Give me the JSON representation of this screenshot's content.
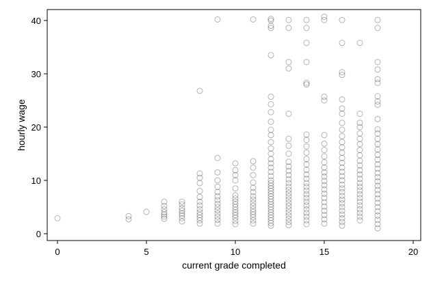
{
  "chart_data": {
    "type": "scatter",
    "xlabel": "current grade completed",
    "ylabel": "hourly wage",
    "xlim": [
      0,
      20
    ],
    "ylim": [
      0,
      40
    ],
    "xticks": [
      0,
      5,
      10,
      15,
      20
    ],
    "yticks": [
      0,
      10,
      20,
      30,
      40
    ],
    "grid": false,
    "marker_color": "#000000",
    "marker_opacity": 0.3,
    "points": [
      {
        "x": 0,
        "y": 2.9
      },
      {
        "x": 4,
        "y": 2.7
      },
      {
        "x": 4,
        "y": 3.3
      },
      {
        "x": 5,
        "y": 4.1
      },
      {
        "x": 6,
        "y": 2.8
      },
      {
        "x": 6,
        "y": 3.2
      },
      {
        "x": 6,
        "y": 3.6
      },
      {
        "x": 6,
        "y": 4.0
      },
      {
        "x": 6,
        "y": 4.6
      },
      {
        "x": 6,
        "y": 5.2
      },
      {
        "x": 6,
        "y": 6.0
      },
      {
        "x": 7,
        "y": 2.3
      },
      {
        "x": 7,
        "y": 2.9
      },
      {
        "x": 7,
        "y": 3.4
      },
      {
        "x": 7,
        "y": 3.8
      },
      {
        "x": 7,
        "y": 4.3
      },
      {
        "x": 7,
        "y": 4.8
      },
      {
        "x": 7,
        "y": 5.5
      },
      {
        "x": 7,
        "y": 6.0
      },
      {
        "x": 8,
        "y": 1.9
      },
      {
        "x": 8,
        "y": 2.5
      },
      {
        "x": 8,
        "y": 3.0
      },
      {
        "x": 8,
        "y": 3.5
      },
      {
        "x": 8,
        "y": 4.0
      },
      {
        "x": 8,
        "y": 4.6
      },
      {
        "x": 8,
        "y": 5.3
      },
      {
        "x": 8,
        "y": 6.0
      },
      {
        "x": 8,
        "y": 6.9
      },
      {
        "x": 8,
        "y": 8.0
      },
      {
        "x": 8,
        "y": 9.5
      },
      {
        "x": 8,
        "y": 10.5
      },
      {
        "x": 8,
        "y": 11.3
      },
      {
        "x": 8,
        "y": 26.8
      },
      {
        "x": 9,
        "y": 1.9
      },
      {
        "x": 9,
        "y": 2.6
      },
      {
        "x": 9,
        "y": 3.2
      },
      {
        "x": 9,
        "y": 3.8
      },
      {
        "x": 9,
        "y": 4.4
      },
      {
        "x": 9,
        "y": 5.0
      },
      {
        "x": 9,
        "y": 5.6
      },
      {
        "x": 9,
        "y": 6.3
      },
      {
        "x": 9,
        "y": 7.0
      },
      {
        "x": 9,
        "y": 7.8
      },
      {
        "x": 9,
        "y": 8.8
      },
      {
        "x": 9,
        "y": 10.0
      },
      {
        "x": 9,
        "y": 11.5
      },
      {
        "x": 9,
        "y": 14.2
      },
      {
        "x": 9,
        "y": 40.2
      },
      {
        "x": 10,
        "y": 1.8
      },
      {
        "x": 10,
        "y": 2.4
      },
      {
        "x": 10,
        "y": 3.0
      },
      {
        "x": 10,
        "y": 3.5
      },
      {
        "x": 10,
        "y": 4.0
      },
      {
        "x": 10,
        "y": 4.5
      },
      {
        "x": 10,
        "y": 5.0
      },
      {
        "x": 10,
        "y": 5.5
      },
      {
        "x": 10,
        "y": 6.0
      },
      {
        "x": 10,
        "y": 6.6
      },
      {
        "x": 10,
        "y": 7.2
      },
      {
        "x": 10,
        "y": 8.5
      },
      {
        "x": 10,
        "y": 10.0
      },
      {
        "x": 10,
        "y": 11.0
      },
      {
        "x": 10,
        "y": 11.9
      },
      {
        "x": 10,
        "y": 13.2
      },
      {
        "x": 11,
        "y": 1.9
      },
      {
        "x": 11,
        "y": 2.5
      },
      {
        "x": 11,
        "y": 3.1
      },
      {
        "x": 11,
        "y": 3.6
      },
      {
        "x": 11,
        "y": 4.1
      },
      {
        "x": 11,
        "y": 4.6
      },
      {
        "x": 11,
        "y": 5.2
      },
      {
        "x": 11,
        "y": 5.8
      },
      {
        "x": 11,
        "y": 6.4
      },
      {
        "x": 11,
        "y": 7.0
      },
      {
        "x": 11,
        "y": 7.8
      },
      {
        "x": 11,
        "y": 8.6
      },
      {
        "x": 11,
        "y": 9.6
      },
      {
        "x": 11,
        "y": 11.0
      },
      {
        "x": 11,
        "y": 12.4
      },
      {
        "x": 11,
        "y": 13.6
      },
      {
        "x": 11,
        "y": 40.2
      },
      {
        "x": 12,
        "y": 1.5
      },
      {
        "x": 12,
        "y": 2.0
      },
      {
        "x": 12,
        "y": 2.5
      },
      {
        "x": 12,
        "y": 3.0
      },
      {
        "x": 12,
        "y": 3.5
      },
      {
        "x": 12,
        "y": 4.0
      },
      {
        "x": 12,
        "y": 4.5
      },
      {
        "x": 12,
        "y": 5.0
      },
      {
        "x": 12,
        "y": 5.5
      },
      {
        "x": 12,
        "y": 6.0
      },
      {
        "x": 12,
        "y": 6.5
      },
      {
        "x": 12,
        "y": 7.0
      },
      {
        "x": 12,
        "y": 7.5
      },
      {
        "x": 12,
        "y": 8.0
      },
      {
        "x": 12,
        "y": 8.5
      },
      {
        "x": 12,
        "y": 9.0
      },
      {
        "x": 12,
        "y": 9.5
      },
      {
        "x": 12,
        "y": 10.0
      },
      {
        "x": 12,
        "y": 10.8
      },
      {
        "x": 12,
        "y": 11.6
      },
      {
        "x": 12,
        "y": 12.4
      },
      {
        "x": 12,
        "y": 13.2
      },
      {
        "x": 12,
        "y": 14.0
      },
      {
        "x": 12,
        "y": 15.0
      },
      {
        "x": 12,
        "y": 16.0
      },
      {
        "x": 12,
        "y": 17.2
      },
      {
        "x": 12,
        "y": 18.5
      },
      {
        "x": 12,
        "y": 19.5
      },
      {
        "x": 12,
        "y": 21.0
      },
      {
        "x": 12,
        "y": 22.8
      },
      {
        "x": 12,
        "y": 24.3
      },
      {
        "x": 12,
        "y": 25.7
      },
      {
        "x": 12,
        "y": 33.5
      },
      {
        "x": 12,
        "y": 38.6
      },
      {
        "x": 12,
        "y": 39.0
      },
      {
        "x": 12,
        "y": 40.0
      },
      {
        "x": 12,
        "y": 40.3
      },
      {
        "x": 13,
        "y": 1.6
      },
      {
        "x": 13,
        "y": 2.2
      },
      {
        "x": 13,
        "y": 2.8
      },
      {
        "x": 13,
        "y": 3.4
      },
      {
        "x": 13,
        "y": 4.0
      },
      {
        "x": 13,
        "y": 4.6
      },
      {
        "x": 13,
        "y": 5.2
      },
      {
        "x": 13,
        "y": 5.8
      },
      {
        "x": 13,
        "y": 6.4
      },
      {
        "x": 13,
        "y": 7.0
      },
      {
        "x": 13,
        "y": 7.6
      },
      {
        "x": 13,
        "y": 8.2
      },
      {
        "x": 13,
        "y": 8.8
      },
      {
        "x": 13,
        "y": 9.5
      },
      {
        "x": 13,
        "y": 10.2
      },
      {
        "x": 13,
        "y": 11.0
      },
      {
        "x": 13,
        "y": 11.8
      },
      {
        "x": 13,
        "y": 12.6
      },
      {
        "x": 13,
        "y": 13.5
      },
      {
        "x": 13,
        "y": 15.0
      },
      {
        "x": 13,
        "y": 16.5
      },
      {
        "x": 13,
        "y": 17.8
      },
      {
        "x": 13,
        "y": 22.5
      },
      {
        "x": 13,
        "y": 31.0
      },
      {
        "x": 13,
        "y": 32.2
      },
      {
        "x": 13,
        "y": 38.6
      },
      {
        "x": 13,
        "y": 40.1
      },
      {
        "x": 14,
        "y": 1.8
      },
      {
        "x": 14,
        "y": 2.5
      },
      {
        "x": 14,
        "y": 3.2
      },
      {
        "x": 14,
        "y": 3.9
      },
      {
        "x": 14,
        "y": 4.6
      },
      {
        "x": 14,
        "y": 5.3
      },
      {
        "x": 14,
        "y": 6.0
      },
      {
        "x": 14,
        "y": 6.7
      },
      {
        "x": 14,
        "y": 7.4
      },
      {
        "x": 14,
        "y": 8.1
      },
      {
        "x": 14,
        "y": 8.8
      },
      {
        "x": 14,
        "y": 9.5
      },
      {
        "x": 14,
        "y": 10.3
      },
      {
        "x": 14,
        "y": 11.1
      },
      {
        "x": 14,
        "y": 12.0
      },
      {
        "x": 14,
        "y": 13.0
      },
      {
        "x": 14,
        "y": 14.0
      },
      {
        "x": 14,
        "y": 15.2
      },
      {
        "x": 14,
        "y": 16.4
      },
      {
        "x": 14,
        "y": 17.6
      },
      {
        "x": 14,
        "y": 18.6
      },
      {
        "x": 14,
        "y": 28.0
      },
      {
        "x": 14,
        "y": 28.3
      },
      {
        "x": 14,
        "y": 32.2
      },
      {
        "x": 14,
        "y": 35.8
      },
      {
        "x": 14,
        "y": 38.6
      },
      {
        "x": 14,
        "y": 40.1
      },
      {
        "x": 15,
        "y": 1.9
      },
      {
        "x": 15,
        "y": 2.7
      },
      {
        "x": 15,
        "y": 3.5
      },
      {
        "x": 15,
        "y": 4.3
      },
      {
        "x": 15,
        "y": 5.1
      },
      {
        "x": 15,
        "y": 5.9
      },
      {
        "x": 15,
        "y": 6.7
      },
      {
        "x": 15,
        "y": 7.5
      },
      {
        "x": 15,
        "y": 8.3
      },
      {
        "x": 15,
        "y": 9.1
      },
      {
        "x": 15,
        "y": 9.9
      },
      {
        "x": 15,
        "y": 10.7
      },
      {
        "x": 15,
        "y": 11.5
      },
      {
        "x": 15,
        "y": 12.4
      },
      {
        "x": 15,
        "y": 13.4
      },
      {
        "x": 15,
        "y": 14.5
      },
      {
        "x": 15,
        "y": 15.7
      },
      {
        "x": 15,
        "y": 16.9
      },
      {
        "x": 15,
        "y": 18.5
      },
      {
        "x": 15,
        "y": 25.0
      },
      {
        "x": 15,
        "y": 25.7
      },
      {
        "x": 15,
        "y": 40.1
      },
      {
        "x": 15,
        "y": 40.7
      },
      {
        "x": 16,
        "y": 1.5
      },
      {
        "x": 16,
        "y": 2.2
      },
      {
        "x": 16,
        "y": 2.9
      },
      {
        "x": 16,
        "y": 3.6
      },
      {
        "x": 16,
        "y": 4.3
      },
      {
        "x": 16,
        "y": 5.0
      },
      {
        "x": 16,
        "y": 5.7
      },
      {
        "x": 16,
        "y": 6.4
      },
      {
        "x": 16,
        "y": 7.1
      },
      {
        "x": 16,
        "y": 7.8
      },
      {
        "x": 16,
        "y": 8.5
      },
      {
        "x": 16,
        "y": 9.2
      },
      {
        "x": 16,
        "y": 10.0
      },
      {
        "x": 16,
        "y": 10.8
      },
      {
        "x": 16,
        "y": 11.6
      },
      {
        "x": 16,
        "y": 12.4
      },
      {
        "x": 16,
        "y": 13.3
      },
      {
        "x": 16,
        "y": 14.2
      },
      {
        "x": 16,
        "y": 15.2
      },
      {
        "x": 16,
        "y": 16.2
      },
      {
        "x": 16,
        "y": 17.2
      },
      {
        "x": 16,
        "y": 18.3
      },
      {
        "x": 16,
        "y": 19.5
      },
      {
        "x": 16,
        "y": 20.8
      },
      {
        "x": 16,
        "y": 22.5
      },
      {
        "x": 16,
        "y": 23.5
      },
      {
        "x": 16,
        "y": 25.2
      },
      {
        "x": 16,
        "y": 29.8
      },
      {
        "x": 16,
        "y": 30.3
      },
      {
        "x": 16,
        "y": 35.8
      },
      {
        "x": 16,
        "y": 40.1
      },
      {
        "x": 17,
        "y": 2.5
      },
      {
        "x": 17,
        "y": 3.2
      },
      {
        "x": 17,
        "y": 3.9
      },
      {
        "x": 17,
        "y": 4.6
      },
      {
        "x": 17,
        "y": 5.3
      },
      {
        "x": 17,
        "y": 6.0
      },
      {
        "x": 17,
        "y": 6.7
      },
      {
        "x": 17,
        "y": 7.4
      },
      {
        "x": 17,
        "y": 8.1
      },
      {
        "x": 17,
        "y": 8.8
      },
      {
        "x": 17,
        "y": 9.5
      },
      {
        "x": 17,
        "y": 10.3
      },
      {
        "x": 17,
        "y": 11.1
      },
      {
        "x": 17,
        "y": 11.9
      },
      {
        "x": 17,
        "y": 12.8
      },
      {
        "x": 17,
        "y": 13.7
      },
      {
        "x": 17,
        "y": 14.7
      },
      {
        "x": 17,
        "y": 15.7
      },
      {
        "x": 17,
        "y": 16.8
      },
      {
        "x": 17,
        "y": 17.8
      },
      {
        "x": 17,
        "y": 18.8
      },
      {
        "x": 17,
        "y": 20.0
      },
      {
        "x": 17,
        "y": 20.8
      },
      {
        "x": 17,
        "y": 22.5
      },
      {
        "x": 17,
        "y": 35.8
      },
      {
        "x": 18,
        "y": 1.0
      },
      {
        "x": 18,
        "y": 1.8
      },
      {
        "x": 18,
        "y": 2.6
      },
      {
        "x": 18,
        "y": 3.4
      },
      {
        "x": 18,
        "y": 4.2
      },
      {
        "x": 18,
        "y": 5.0
      },
      {
        "x": 18,
        "y": 5.8
      },
      {
        "x": 18,
        "y": 6.6
      },
      {
        "x": 18,
        "y": 7.4
      },
      {
        "x": 18,
        "y": 8.2
      },
      {
        "x": 18,
        "y": 9.0
      },
      {
        "x": 18,
        "y": 9.8
      },
      {
        "x": 18,
        "y": 10.6
      },
      {
        "x": 18,
        "y": 11.4
      },
      {
        "x": 18,
        "y": 12.2
      },
      {
        "x": 18,
        "y": 13.0
      },
      {
        "x": 18,
        "y": 13.9
      },
      {
        "x": 18,
        "y": 14.8
      },
      {
        "x": 18,
        "y": 15.8
      },
      {
        "x": 18,
        "y": 16.8
      },
      {
        "x": 18,
        "y": 17.8
      },
      {
        "x": 18,
        "y": 18.8
      },
      {
        "x": 18,
        "y": 19.6
      },
      {
        "x": 18,
        "y": 21.5
      },
      {
        "x": 18,
        "y": 24.2
      },
      {
        "x": 18,
        "y": 24.8
      },
      {
        "x": 18,
        "y": 25.8
      },
      {
        "x": 18,
        "y": 28.3
      },
      {
        "x": 18,
        "y": 29.0
      },
      {
        "x": 18,
        "y": 30.8
      },
      {
        "x": 18,
        "y": 32.2
      },
      {
        "x": 18,
        "y": 38.6
      },
      {
        "x": 18,
        "y": 40.1
      }
    ]
  }
}
